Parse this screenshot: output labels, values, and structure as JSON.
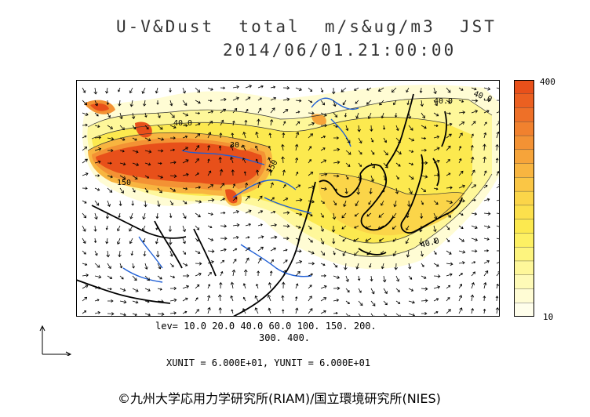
{
  "title_line1": "U-V&Dust  total  m/s&ug/m3  JST",
  "title_line2": "2014/06/01.21:00:00",
  "contour_labels": [
    "40.0",
    "30.",
    "150",
    "150",
    "40.0",
    "40.0",
    "40.0"
  ],
  "legend": {
    "max_label": "400",
    "min_label": "10",
    "colors": [
      "#E8501A",
      "#EB6021",
      "#EE7028",
      "#F1812E",
      "#F39234",
      "#F6A43A",
      "#F8B540",
      "#FAC645",
      "#FBD549",
      "#FCE04C",
      "#FCE94F",
      "#FDF063",
      "#FDF47E",
      "#FEF79A",
      "#FEFAB7",
      "#FFFCD4",
      "#FFFEEB"
    ]
  },
  "levels_line1": "lev= 10.0 20.0 40.0 60.0 100. 150. 200.",
  "levels_line2": "300. 400.",
  "units": "XUNIT = 6.000E+01, YUNIT = 6.000E+01",
  "credit": "©九州大学応用力学研究所(RIAM)/国立環境研究所(NIES)"
}
